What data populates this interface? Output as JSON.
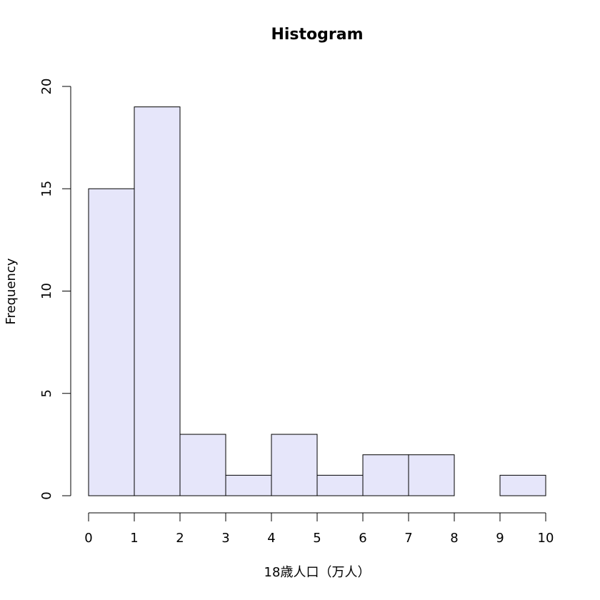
{
  "chart_data": {
    "type": "histogram",
    "title": "Histogram",
    "x_label": "18歳人口（万人）",
    "y_label": "Frequency",
    "bins": [
      0,
      1,
      2,
      3,
      4,
      5,
      6,
      7,
      8,
      9,
      10
    ],
    "values": [
      15,
      19,
      3,
      1,
      3,
      1,
      2,
      2,
      0,
      1
    ],
    "color": "#e6e6fa",
    "xlim": [
      0,
      10
    ],
    "xticks": [
      0,
      1,
      2,
      3,
      4,
      5,
      6,
      7,
      8,
      9,
      10
    ],
    "ylim": [
      0,
      20
    ],
    "yticks": [
      0,
      5,
      10,
      15,
      20
    ]
  }
}
